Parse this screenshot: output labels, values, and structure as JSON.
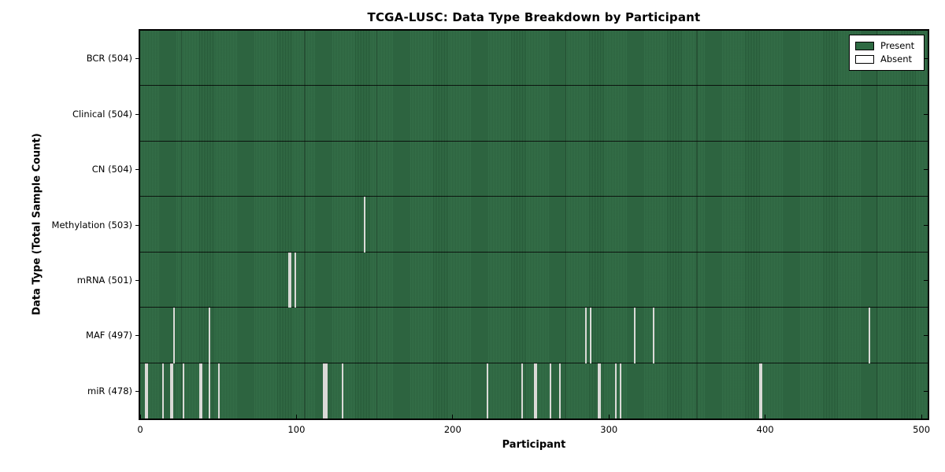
{
  "colors": {
    "present": "#2d6a42",
    "absent": "#f3f3ef",
    "legend_absent": "#ffffff",
    "axis": "#000000",
    "background": "#ffffff"
  },
  "chart_data": {
    "type": "heatmap",
    "title": "TCGA-LUSC: Data Type Breakdown by Participant",
    "xlabel": "Participant",
    "ylabel": "Data Type (Total Sample Count)",
    "x_ticks": [
      0,
      100,
      200,
      300,
      400,
      500
    ],
    "x_range": [
      0,
      504
    ],
    "total_participants": 504,
    "grid": false,
    "legend": {
      "position": "upper-right",
      "entries": [
        {
          "label": "Present",
          "color": "#2d6a42"
        },
        {
          "label": "Absent",
          "color": "#ffffff"
        }
      ]
    },
    "rows": [
      {
        "label": "BCR (504)",
        "data_type": "bcr",
        "present_count": 504,
        "absent_participants": []
      },
      {
        "label": "Clinical (504)",
        "data_type": "clinical",
        "present_count": 504,
        "absent_participants": []
      },
      {
        "label": "CN (504)",
        "data_type": "cn",
        "present_count": 504,
        "absent_participants": []
      },
      {
        "label": "Methylation (503)",
        "data_type": "methylation",
        "present_count": 503,
        "absent_participants": [
          143
        ]
      },
      {
        "label": "mRNA (501)",
        "data_type": "mrna",
        "present_count": 501,
        "absent_participants": [
          95,
          96,
          99
        ]
      },
      {
        "label": "MAF (497)",
        "data_type": "maf",
        "present_count": 497,
        "absent_participants": [
          21,
          44,
          285,
          288,
          316,
          328,
          466
        ]
      },
      {
        "label": "miR (478)",
        "data_type": "mir",
        "present_count": 478,
        "absent_participants": [
          3,
          4,
          14,
          19,
          20,
          27,
          38,
          39,
          44,
          50,
          117,
          118,
          119,
          129,
          222,
          244,
          252,
          253,
          262,
          268,
          293,
          294,
          304,
          307,
          396,
          397
        ]
      }
    ]
  }
}
